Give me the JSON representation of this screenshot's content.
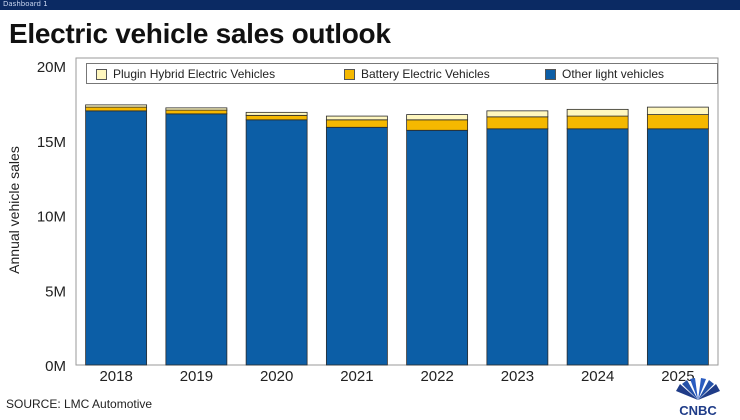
{
  "header": {
    "tab_label": "Dashboard 1"
  },
  "title": "Electric vehicle sales outlook",
  "source": "SOURCE: LMC Automotive",
  "logo_text": "CNBC",
  "colors": {
    "phev": "#fff7bf",
    "bev": "#f5b800",
    "other": "#0c5ea6",
    "header_bar": "#0b2a63"
  },
  "chart_data": {
    "type": "bar",
    "stacked": true,
    "categories": [
      "2018",
      "2019",
      "2020",
      "2021",
      "2022",
      "2023",
      "2024",
      "2025"
    ],
    "series": [
      {
        "name": "Other light vehicles",
        "color": "#0c5ea6",
        "values": [
          17.0,
          16.8,
          16.4,
          15.9,
          15.7,
          15.8,
          15.8,
          15.8
        ]
      },
      {
        "name": "Battery Electric Vehicles",
        "color": "#f5b800",
        "values": [
          0.25,
          0.25,
          0.3,
          0.5,
          0.7,
          0.8,
          0.85,
          0.95
        ]
      },
      {
        "name": "Plugin Hybrid Electric Vehicles",
        "color": "#fff7bf",
        "values": [
          0.15,
          0.15,
          0.2,
          0.25,
          0.35,
          0.4,
          0.45,
          0.5
        ]
      }
    ],
    "legend_order": [
      "Plugin Hybrid Electric Vehicles",
      "Battery Electric Vehicles",
      "Other light vehicles"
    ],
    "ylabel": "Annual vehicle sales",
    "xlabel": "",
    "ylim": [
      0,
      20
    ],
    "yticks": [
      {
        "value": 0,
        "label": "0M"
      },
      {
        "value": 5,
        "label": "5M"
      },
      {
        "value": 10,
        "label": "10M"
      },
      {
        "value": 15,
        "label": "15M"
      },
      {
        "value": 20,
        "label": "20M"
      }
    ],
    "grid": false,
    "legend_position": "top"
  }
}
